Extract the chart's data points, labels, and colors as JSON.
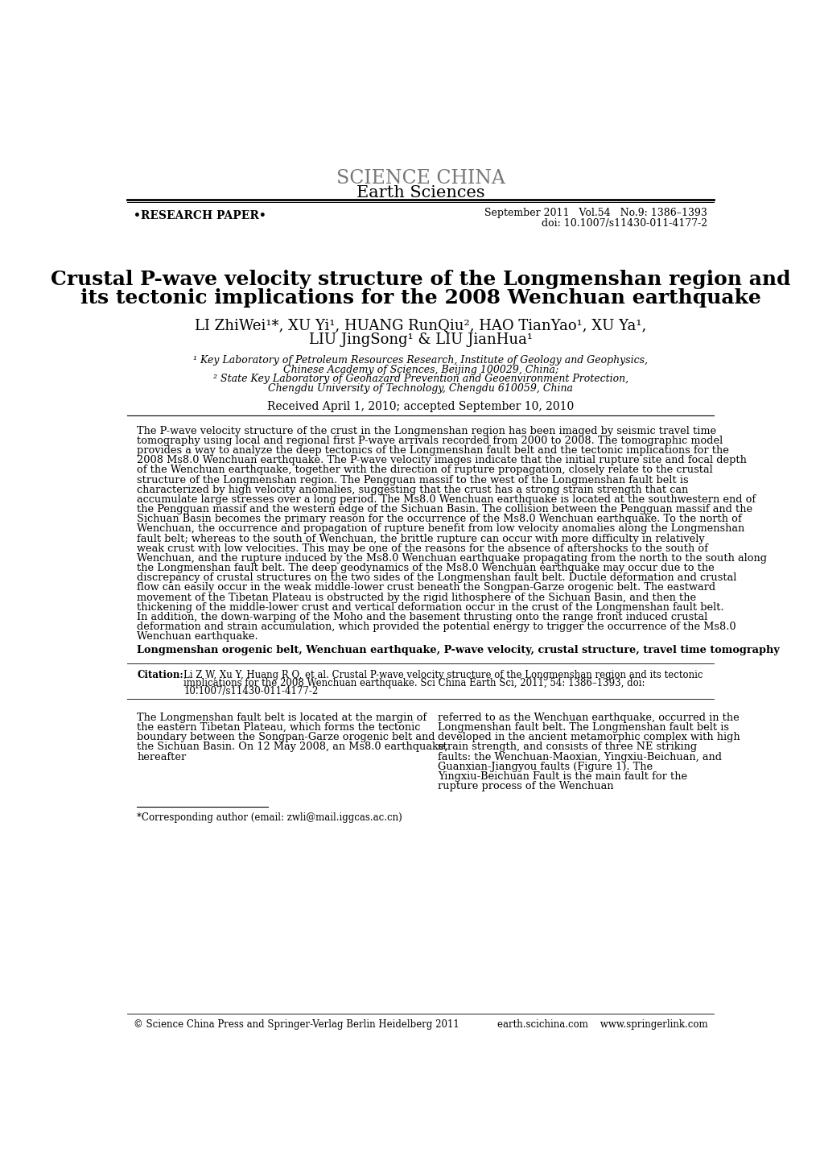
{
  "science_china": "SCIENCE CHINA",
  "earth_sciences": "Earth Sciences",
  "research_paper": "•RESEARCH PAPER•",
  "journal_info": "September 2011   Vol.54   No.9: 1386–1393",
  "doi": "doi: 10.1007/s11430-011-4177-2",
  "paper_title_line1": "Crustal P-wave velocity structure of the Longmenshan region and",
  "paper_title_line2": "its tectonic implications for the 2008 Wenchuan earthquake",
  "authors_line1": "LI ZhiWei¹*, XU Yi¹, HUANG RunQiu², HAO TianYao¹, XU Ya¹,",
  "authors_line2": "LIU JingSong¹ & LIU JianHua¹",
  "affil1": "¹ Key Laboratory of Petroleum Resources Research, Institute of Geology and Geophysics,",
  "affil1b": "Chinese Academy of Sciences, Beijing 100029, China;",
  "affil2": "² State Key Laboratory of Geohazard Prevention and Geoenvironment Protection,",
  "affil2b": "Chengdu University of Technology, Chengdu 610059, China",
  "received": "Received April 1, 2010; accepted September 10, 2010",
  "abstract": "The P-wave velocity structure of the crust in the Longmenshan region has been imaged by seismic travel time tomography using local and regional first P-wave arrivals recorded from 2000 to 2008. The tomographic model provides a way to analyze the deep tectonics of the Longmenshan fault belt and the tectonic implications for the 2008 Ms8.0 Wenchuan earthquake. The P-wave velocity images indicate that the initial rupture site and focal depth of the Wenchuan earthquake, together with the direction of rupture propagation, closely relate to the crustal structure of the Longmenshan region. The Pengguan massif to the west of the Longmenshan fault belt is characterized by high velocity anomalies, suggesting that the crust has a strong strain strength that can accumulate large stresses over a long period. The Ms8.0 Wenchuan earthquake is located at the southwestern end of the Pengguan massif and the western edge of the Sichuan Basin. The collision between the Pengguan massif and the Sichuan Basin becomes the primary reason for the occurrence of the Ms8.0 Wenchuan earthquake. To the north of Wenchuan, the occurrence and propagation of rupture benefit from low velocity anomalies along the Longmenshan fault belt; whereas to the south of Wenchuan, the brittle rupture can occur with more difficulty in relatively weak crust with low velocities. This may be one of the reasons for the absence of aftershocks to the south of Wenchuan, and the rupture induced by the Ms8.0 Wenchuan earthquake propagating from the north to the south along the Longmenshan fault belt. The deep geodynamics of the Ms8.0 Wenchuan earthquake may occur due to the discrepancy of crustal structures on the two sides of the Longmenshan fault belt. Ductile deformation and crustal flow can easily occur in the weak middle-lower crust beneath the Songpan-Garze orogenic belt. The eastward movement of the Tibetan Plateau is obstructed by the rigid lithosphere of the Sichuan Basin, and then the thickening of the middle-lower crust and vertical deformation occur in the crust of the Longmenshan fault belt. In addition, the down-warping of the Moho and the basement thrusting onto the range front induced crustal deformation and strain accumulation, which provided the potential energy to trigger the occurrence of the Ms8.0 Wenchuan earthquake.",
  "keywords": "Longmenshan orogenic belt, Wenchuan earthquake, P-wave velocity, crustal structure, travel time tomography",
  "citation_label": "Citation:",
  "citation_text": "Li Z W, Xu Y, Huang R Q, et al. Crustal P-wave velocity structure of the Longmenshan region and its tectonic implications for the 2008 Wenchuan earthquake. Sci China Earth Sci, 2011, 54: 1386–1393, doi: 10.1007/s11430-011-4177-2",
  "body_left": "The Longmenshan fault belt is located at the margin of the eastern Tibetan Plateau, which forms the tectonic boundary between the Songpan-Garze orogenic belt and the Sichuan Basin. On 12 May 2008, an Ms8.0 earthquake, hereafter",
  "body_right": "referred to as the Wenchuan earthquake, occurred in the Longmenshan fault belt. The Longmenshan fault belt is developed in the ancient metamorphic complex with high strain strength, and consists of three NE striking faults: the Wenchuan-Maoxian, Yingxiu-Beichuan, and Guanxian-Jiangyou faults (Figure 1). The Yingxiu-Beichuan Fault is the main fault for the rupture process of the Wenchuan",
  "footnote": "*Corresponding author (email: zwli@mail.iggcas.ac.cn)",
  "footer_left": "© Science China Press and Springer-Verlag Berlin Heidelberg 2011",
  "footer_right": "earth.scichina.com    www.springerlink.com",
  "bg_color": "#ffffff",
  "text_color": "#000000",
  "header_color": "#777777"
}
